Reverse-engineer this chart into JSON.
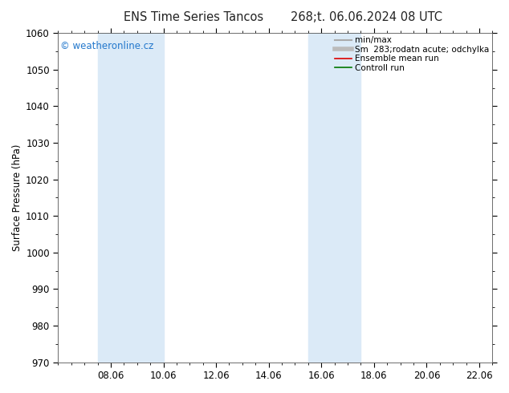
{
  "title_left": "ENS Time Series Tancos",
  "title_right": "268;t. 06.06.2024 08 UTC",
  "ylabel": "Surface Pressure (hPa)",
  "ylim": [
    970,
    1060
  ],
  "yticks": [
    970,
    980,
    990,
    1000,
    1010,
    1020,
    1030,
    1040,
    1050,
    1060
  ],
  "xtick_labels": [
    "08.06",
    "10.06",
    "12.06",
    "14.06",
    "16.06",
    "18.06",
    "20.06",
    "22.06"
  ],
  "xtick_positions": [
    2.0,
    4.0,
    6.0,
    8.0,
    10.0,
    12.0,
    14.0,
    16.0
  ],
  "xlim": [
    0,
    16.5
  ],
  "shade_bands": [
    {
      "x_start": 1.5,
      "x_end": 4.0
    },
    {
      "x_start": 9.5,
      "x_end": 11.5
    }
  ],
  "shade_color": "#dbeaf7",
  "background_color": "#ffffff",
  "watermark": "© weatheronline.cz",
  "watermark_color": "#2277cc",
  "legend_entries": [
    {
      "label": "min/max",
      "color": "#aaaaaa",
      "lw": 1.5
    },
    {
      "label": "Sm  283;rodatn acute; odchylka",
      "color": "#bbbbbb",
      "lw": 4
    },
    {
      "label": "Ensemble mean run",
      "color": "#dd0000",
      "lw": 1.2
    },
    {
      "label": "Controll run",
      "color": "#007700",
      "lw": 1.2
    }
  ],
  "title_fontsize": 10.5,
  "tick_fontsize": 8.5,
  "ylabel_fontsize": 8.5,
  "legend_fontsize": 7.5,
  "watermark_fontsize": 8.5
}
